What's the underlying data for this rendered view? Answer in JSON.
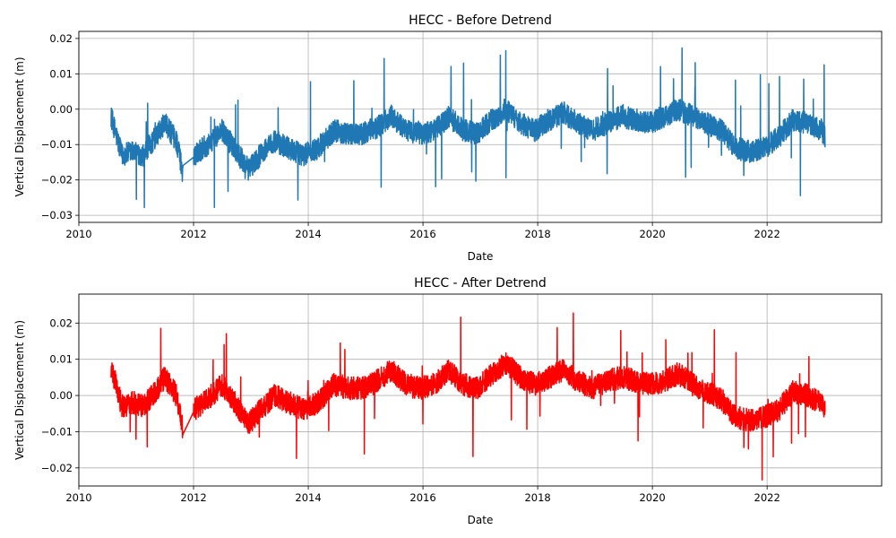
{
  "chart_data": [
    {
      "type": "line",
      "title": "HECC - Before Detrend",
      "xlabel": "Date",
      "ylabel": "Vertical Displacement (m)",
      "x_range": [
        "2010-01-01",
        "2023-12-31"
      ],
      "ylim": [
        -0.032,
        0.022
      ],
      "x_ticks": [
        "2010",
        "2012",
        "2014",
        "2016",
        "2018",
        "2020",
        "2022"
      ],
      "y_ticks": [
        "−0.03",
        "−0.02",
        "−0.01",
        "0.00",
        "0.01",
        "0.02"
      ],
      "y_tick_values": [
        -0.03,
        -0.02,
        -0.01,
        0.0,
        0.01,
        0.02
      ],
      "grid": true,
      "series": [
        {
          "color": "#1f77b4",
          "x": [
            "2010-07-25",
            "2010-10-01",
            "2010-12-15",
            "2011-02-15",
            "2011-05-01",
            "2011-07-01",
            "2011-09-15",
            "2011-10-25",
            "2012-01-01",
            "2012-04-01",
            "2012-07-01",
            "2012-10-01",
            "2012-12-15",
            "2013-03-01",
            "2013-06-01",
            "2013-09-01",
            "2013-12-01",
            "2014-03-01",
            "2014-06-15",
            "2014-09-15",
            "2014-12-15",
            "2015-03-15",
            "2015-06-15",
            "2015-09-15",
            "2015-12-15",
            "2016-03-15",
            "2016-06-15",
            "2016-09-15",
            "2016-12-15",
            "2017-03-15",
            "2017-06-15",
            "2017-09-15",
            "2017-12-15",
            "2018-03-15",
            "2018-06-15",
            "2018-09-15",
            "2018-12-15",
            "2019-03-15",
            "2019-06-15",
            "2019-09-15",
            "2019-12-15",
            "2020-03-15",
            "2020-06-15",
            "2020-09-15",
            "2020-12-15",
            "2021-03-15",
            "2021-06-15",
            "2021-09-15",
            "2021-12-15",
            "2022-03-15",
            "2022-06-15",
            "2022-09-15",
            "2022-12-15",
            "2023-01-05"
          ],
          "y": [
            -0.002,
            -0.013,
            -0.012,
            -0.013,
            -0.008,
            -0.004,
            -0.009,
            -0.018,
            -0.013,
            -0.01,
            -0.006,
            -0.012,
            -0.017,
            -0.013,
            -0.009,
            -0.011,
            -0.013,
            -0.011,
            -0.006,
            -0.007,
            -0.007,
            -0.005,
            -0.002,
            -0.006,
            -0.007,
            -0.006,
            -0.002,
            -0.006,
            -0.007,
            -0.003,
            0.0,
            -0.004,
            -0.006,
            -0.003,
            -0.001,
            -0.004,
            -0.006,
            -0.004,
            -0.002,
            -0.003,
            -0.004,
            -0.002,
            0.0,
            -0.002,
            -0.004,
            -0.006,
            -0.011,
            -0.012,
            -0.011,
            -0.008,
            -0.003,
            -0.004,
            -0.006,
            -0.008
          ]
        }
      ]
    },
    {
      "type": "line",
      "title": "HECC - After Detrend",
      "xlabel": "Date",
      "ylabel": "Vertical Displacement (m)",
      "x_range": [
        "2010-01-01",
        "2023-12-31"
      ],
      "ylim": [
        -0.025,
        0.028
      ],
      "x_ticks": [
        "2010",
        "2012",
        "2014",
        "2016",
        "2018",
        "2020",
        "2022"
      ],
      "y_ticks": [
        "−0.02",
        "−0.01",
        "0.00",
        "0.01",
        "0.02"
      ],
      "y_tick_values": [
        -0.02,
        -0.01,
        0.0,
        0.01,
        0.02
      ],
      "grid": true,
      "series": [
        {
          "color": "#ff0000",
          "x": [
            "2010-07-25",
            "2010-10-01",
            "2010-12-15",
            "2011-02-15",
            "2011-05-01",
            "2011-07-01",
            "2011-09-15",
            "2011-10-25",
            "2012-01-01",
            "2012-04-01",
            "2012-07-01",
            "2012-10-01",
            "2012-12-15",
            "2013-03-01",
            "2013-06-01",
            "2013-09-01",
            "2013-12-01",
            "2014-03-01",
            "2014-06-15",
            "2014-09-15",
            "2014-12-15",
            "2015-03-15",
            "2015-06-15",
            "2015-09-15",
            "2015-12-15",
            "2016-03-15",
            "2016-06-15",
            "2016-09-15",
            "2016-12-15",
            "2017-03-15",
            "2017-06-15",
            "2017-09-15",
            "2017-12-15",
            "2018-03-15",
            "2018-06-15",
            "2018-09-15",
            "2018-12-15",
            "2019-03-15",
            "2019-06-15",
            "2019-09-15",
            "2019-12-15",
            "2020-03-15",
            "2020-06-15",
            "2020-09-15",
            "2020-12-15",
            "2021-03-15",
            "2021-06-15",
            "2021-09-15",
            "2021-12-15",
            "2022-03-15",
            "2022-06-15",
            "2022-09-15",
            "2022-12-15",
            "2023-01-05"
          ],
          "y": [
            0.008,
            -0.003,
            -0.002,
            -0.003,
            0.001,
            0.005,
            0.0,
            -0.009,
            -0.004,
            -0.001,
            0.003,
            -0.003,
            -0.008,
            -0.004,
            0.0,
            -0.002,
            -0.004,
            -0.002,
            0.003,
            0.002,
            0.002,
            0.004,
            0.007,
            0.003,
            0.002,
            0.003,
            0.007,
            0.003,
            0.002,
            0.006,
            0.009,
            0.005,
            0.003,
            0.005,
            0.007,
            0.004,
            0.002,
            0.004,
            0.005,
            0.004,
            0.003,
            0.004,
            0.006,
            0.003,
            0.001,
            -0.001,
            -0.006,
            -0.007,
            -0.006,
            -0.004,
            0.001,
            0.0,
            -0.002,
            -0.004
          ]
        }
      ]
    }
  ]
}
